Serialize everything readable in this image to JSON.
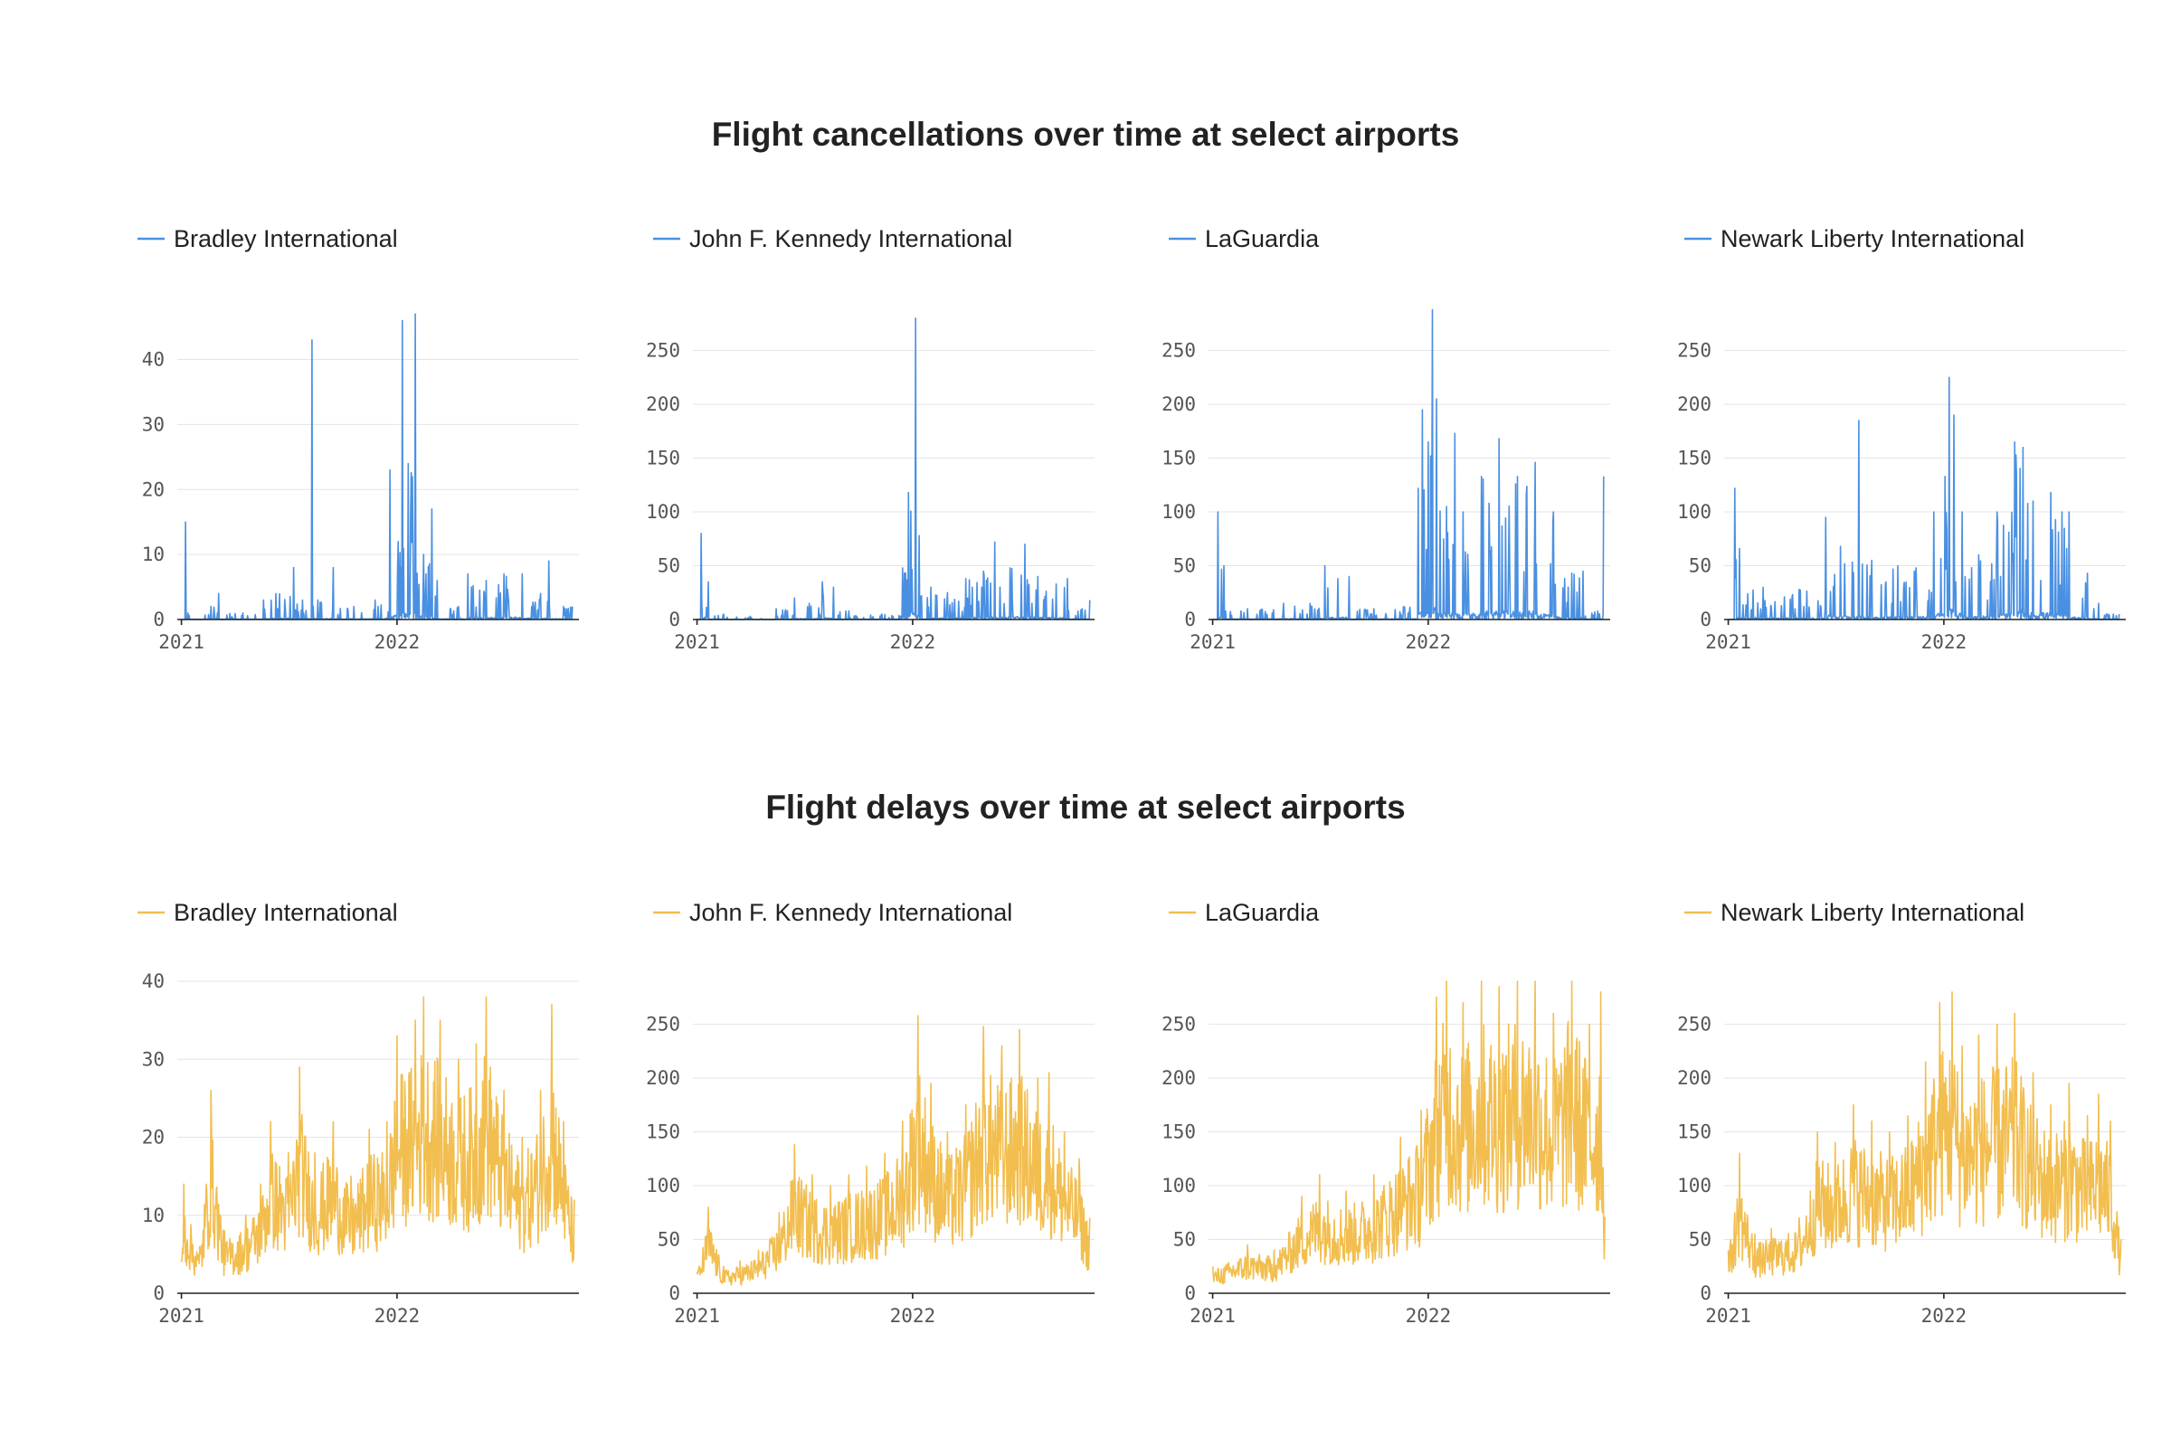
{
  "titles": {
    "top": "Flight cancellations over time at select airports",
    "bottom": "Flight delays over time at select airports"
  },
  "colors": {
    "cancellations": "#4a90e2",
    "delays": "#f2be4f"
  },
  "chart_data": [
    {
      "type": "line",
      "group": "cancellations",
      "series_name": "Bradley International",
      "ylim": [
        0,
        48
      ],
      "yticks": [
        0,
        10,
        20,
        30,
        40
      ],
      "xticks": [
        "2021",
        "2022"
      ],
      "xlim": [
        "2020-12-25",
        "2022-11-05"
      ],
      "grid": true,
      "anchors": [
        [
          "2021-01-01",
          0
        ],
        [
          "2021-01-08",
          15
        ],
        [
          "2021-01-12",
          1
        ],
        [
          "2021-02-20",
          2
        ],
        [
          "2021-03-05",
          4
        ],
        [
          "2021-04-15",
          1
        ],
        [
          "2021-05-20",
          3
        ],
        [
          "2021-06-10",
          4
        ],
        [
          "2021-07-10",
          8
        ],
        [
          "2021-07-25",
          3
        ],
        [
          "2021-08-10",
          43
        ],
        [
          "2021-08-20",
          3
        ],
        [
          "2021-09-15",
          8
        ],
        [
          "2021-10-20",
          2
        ],
        [
          "2021-11-25",
          3
        ],
        [
          "2021-12-20",
          23
        ],
        [
          "2022-01-03",
          12
        ],
        [
          "2022-01-10",
          46
        ],
        [
          "2022-01-20",
          24
        ],
        [
          "2022-02-01",
          47
        ],
        [
          "2022-02-15",
          10
        ],
        [
          "2022-03-01",
          17
        ],
        [
          "2022-03-10",
          6
        ],
        [
          "2022-04-15",
          2
        ],
        [
          "2022-05-01",
          7
        ],
        [
          "2022-06-01",
          6
        ],
        [
          "2022-07-01",
          7
        ],
        [
          "2022-08-01",
          7
        ],
        [
          "2022-09-01",
          4
        ],
        [
          "2022-09-15",
          9
        ],
        [
          "2022-10-10",
          2
        ],
        [
          "2022-10-25",
          2
        ]
      ]
    },
    {
      "type": "line",
      "group": "cancellations",
      "series_name": "John F. Kennedy International",
      "ylim": [
        0,
        290
      ],
      "yticks": [
        0,
        50,
        100,
        150,
        200,
        250
      ],
      "xticks": [
        "2021",
        "2022"
      ],
      "xlim": [
        "2020-12-25",
        "2022-11-05"
      ],
      "grid": true,
      "anchors": [
        [
          "2021-01-01",
          0
        ],
        [
          "2021-01-08",
          80
        ],
        [
          "2021-01-20",
          35
        ],
        [
          "2021-02-15",
          5
        ],
        [
          "2021-04-01",
          3
        ],
        [
          "2021-05-15",
          10
        ],
        [
          "2021-06-15",
          20
        ],
        [
          "2021-07-10",
          15
        ],
        [
          "2021-08-01",
          35
        ],
        [
          "2021-08-20",
          30
        ],
        [
          "2021-09-15",
          8
        ],
        [
          "2021-11-10",
          5
        ],
        [
          "2021-12-15",
          48
        ],
        [
          "2021-12-25",
          118
        ],
        [
          "2022-01-06",
          280
        ],
        [
          "2022-01-12",
          78
        ],
        [
          "2022-02-01",
          30
        ],
        [
          "2022-03-01",
          25
        ],
        [
          "2022-04-01",
          38
        ],
        [
          "2022-05-01",
          45
        ],
        [
          "2022-05-20",
          72
        ],
        [
          "2022-06-15",
          48
        ],
        [
          "2022-07-10",
          70
        ],
        [
          "2022-08-01",
          40
        ],
        [
          "2022-09-01",
          33
        ],
        [
          "2022-09-20",
          38
        ],
        [
          "2022-10-15",
          10
        ],
        [
          "2022-10-28",
          18
        ]
      ]
    },
    {
      "type": "line",
      "group": "cancellations",
      "series_name": "LaGuardia",
      "ylim": [
        0,
        290
      ],
      "yticks": [
        0,
        50,
        100,
        150,
        200,
        250
      ],
      "xticks": [
        "2021",
        "2022"
      ],
      "xlim": [
        "2020-12-25",
        "2022-11-05"
      ],
      "grid": true,
      "anchors": [
        [
          "2021-01-01",
          0
        ],
        [
          "2021-01-10",
          100
        ],
        [
          "2021-01-20",
          50
        ],
        [
          "2021-03-01",
          10
        ],
        [
          "2021-05-01",
          15
        ],
        [
          "2021-06-15",
          15
        ],
        [
          "2021-07-10",
          50
        ],
        [
          "2021-08-01",
          38
        ],
        [
          "2021-08-20",
          40
        ],
        [
          "2021-10-01",
          10
        ],
        [
          "2021-11-20",
          12
        ],
        [
          "2021-12-15",
          122
        ],
        [
          "2021-12-22",
          195
        ],
        [
          "2022-01-01",
          165
        ],
        [
          "2022-01-08",
          288
        ],
        [
          "2022-01-15",
          205
        ],
        [
          "2022-02-01",
          105
        ],
        [
          "2022-02-15",
          173
        ],
        [
          "2022-03-01",
          100
        ],
        [
          "2022-04-01",
          133
        ],
        [
          "2022-05-01",
          168
        ],
        [
          "2022-06-01",
          133
        ],
        [
          "2022-07-01",
          146
        ],
        [
          "2022-08-01",
          100
        ],
        [
          "2022-09-01",
          43
        ],
        [
          "2022-09-20",
          45
        ],
        [
          "2022-10-15",
          8
        ],
        [
          "2022-10-25",
          133
        ]
      ]
    },
    {
      "type": "line",
      "group": "cancellations",
      "series_name": "Newark Liberty International",
      "ylim": [
        0,
        290
      ],
      "yticks": [
        0,
        50,
        100,
        150,
        200,
        250
      ],
      "xticks": [
        "2021",
        "2022"
      ],
      "xlim": [
        "2020-12-25",
        "2022-11-05"
      ],
      "grid": true,
      "anchors": [
        [
          "2021-01-01",
          0
        ],
        [
          "2021-01-12",
          122
        ],
        [
          "2021-01-20",
          66
        ],
        [
          "2021-03-01",
          30
        ],
        [
          "2021-05-01",
          28
        ],
        [
          "2021-06-15",
          95
        ],
        [
          "2021-07-10",
          68
        ],
        [
          "2021-08-10",
          185
        ],
        [
          "2021-09-01",
          55
        ],
        [
          "2021-10-15",
          50
        ],
        [
          "2021-11-15",
          48
        ],
        [
          "2021-12-15",
          100
        ],
        [
          "2022-01-03",
          133
        ],
        [
          "2022-01-10",
          225
        ],
        [
          "2022-01-18",
          190
        ],
        [
          "2022-02-01",
          100
        ],
        [
          "2022-03-01",
          60
        ],
        [
          "2022-04-01",
          100
        ],
        [
          "2022-05-01",
          165
        ],
        [
          "2022-05-15",
          160
        ],
        [
          "2022-06-01",
          110
        ],
        [
          "2022-07-01",
          118
        ],
        [
          "2022-08-01",
          100
        ],
        [
          "2022-09-01",
          43
        ],
        [
          "2022-09-20",
          15
        ],
        [
          "2022-10-15",
          5
        ],
        [
          "2022-10-25",
          5
        ]
      ]
    },
    {
      "type": "line",
      "group": "delays",
      "series_name": "Bradley International",
      "ylim": [
        0,
        40
      ],
      "yticks": [
        0,
        10,
        20,
        30,
        40
      ],
      "xticks": [
        "2021",
        "2022"
      ],
      "xlim": [
        "2020-12-25",
        "2022-11-05"
      ],
      "grid": true,
      "anchors": [
        [
          "2021-01-01",
          4
        ],
        [
          "2021-01-05",
          14
        ],
        [
          "2021-02-01",
          6
        ],
        [
          "2021-02-20",
          26
        ],
        [
          "2021-03-15",
          8
        ],
        [
          "2021-04-20",
          10
        ],
        [
          "2021-05-15",
          14
        ],
        [
          "2021-06-01",
          22
        ],
        [
          "2021-07-01",
          18
        ],
        [
          "2021-07-20",
          29
        ],
        [
          "2021-08-15",
          18
        ],
        [
          "2021-09-15",
          22
        ],
        [
          "2021-10-15",
          15
        ],
        [
          "2021-11-15",
          21
        ],
        [
          "2021-12-15",
          22
        ],
        [
          "2022-01-01",
          33
        ],
        [
          "2022-02-01",
          35
        ],
        [
          "2022-02-15",
          38
        ],
        [
          "2022-03-15",
          35
        ],
        [
          "2022-04-15",
          30
        ],
        [
          "2022-05-15",
          32
        ],
        [
          "2022-06-01",
          38
        ],
        [
          "2022-07-01",
          26
        ],
        [
          "2022-08-01",
          20
        ],
        [
          "2022-09-01",
          26
        ],
        [
          "2022-09-20",
          37
        ],
        [
          "2022-10-10",
          22
        ],
        [
          "2022-10-28",
          12
        ]
      ]
    },
    {
      "type": "line",
      "group": "delays",
      "series_name": "John F. Kennedy International",
      "ylim": [
        0,
        290
      ],
      "yticks": [
        0,
        50,
        100,
        150,
        200,
        250
      ],
      "xticks": [
        "2021",
        "2022"
      ],
      "xlim": [
        "2020-12-25",
        "2022-11-05"
      ],
      "grid": true,
      "anchors": [
        [
          "2021-01-01",
          20
        ],
        [
          "2021-01-20",
          80
        ],
        [
          "2021-02-15",
          25
        ],
        [
          "2021-03-15",
          30
        ],
        [
          "2021-04-15",
          40
        ],
        [
          "2021-05-20",
          75
        ],
        [
          "2021-06-15",
          138
        ],
        [
          "2021-07-15",
          110
        ],
        [
          "2021-08-15",
          100
        ],
        [
          "2021-09-15",
          110
        ],
        [
          "2021-10-15",
          118
        ],
        [
          "2021-11-15",
          130
        ],
        [
          "2021-12-15",
          160
        ],
        [
          "2022-01-10",
          258
        ],
        [
          "2022-02-01",
          195
        ],
        [
          "2022-03-01",
          150
        ],
        [
          "2022-04-01",
          175
        ],
        [
          "2022-05-01",
          248
        ],
        [
          "2022-06-01",
          230
        ],
        [
          "2022-07-01",
          245
        ],
        [
          "2022-08-01",
          200
        ],
        [
          "2022-08-20",
          205
        ],
        [
          "2022-09-15",
          150
        ],
        [
          "2022-10-10",
          125
        ],
        [
          "2022-10-28",
          70
        ]
      ]
    },
    {
      "type": "line",
      "group": "delays",
      "series_name": "LaGuardia",
      "ylim": [
        0,
        290
      ],
      "yticks": [
        0,
        50,
        100,
        150,
        200,
        250
      ],
      "xticks": [
        "2021",
        "2022"
      ],
      "xlim": [
        "2020-12-25",
        "2022-11-05"
      ],
      "grid": true,
      "anchors": [
        [
          "2021-01-01",
          25
        ],
        [
          "2021-03-01",
          45
        ],
        [
          "2021-04-15",
          40
        ],
        [
          "2021-06-01",
          90
        ],
        [
          "2021-07-01",
          110
        ],
        [
          "2021-08-15",
          95
        ],
        [
          "2021-10-01",
          110
        ],
        [
          "2021-11-15",
          145
        ],
        [
          "2021-12-20",
          170
        ],
        [
          "2022-01-15",
          275
        ],
        [
          "2022-02-01",
          310
        ],
        [
          "2022-03-01",
          270
        ],
        [
          "2022-04-01",
          300
        ],
        [
          "2022-05-01",
          285
        ],
        [
          "2022-06-01",
          305
        ],
        [
          "2022-07-01",
          300
        ],
        [
          "2022-08-01",
          260
        ],
        [
          "2022-09-01",
          310
        ],
        [
          "2022-10-01",
          250
        ],
        [
          "2022-10-20",
          280
        ],
        [
          "2022-10-28",
          70
        ]
      ]
    },
    {
      "type": "line",
      "group": "delays",
      "series_name": "Newark Liberty International",
      "ylim": [
        0,
        290
      ],
      "yticks": [
        0,
        50,
        100,
        150,
        200,
        250
      ],
      "xticks": [
        "2021",
        "2022"
      ],
      "xlim": [
        "2020-12-25",
        "2022-11-05"
      ],
      "grid": true,
      "anchors": [
        [
          "2021-01-01",
          40
        ],
        [
          "2021-01-20",
          130
        ],
        [
          "2021-02-15",
          55
        ],
        [
          "2021-03-15",
          60
        ],
        [
          "2021-05-01",
          70
        ],
        [
          "2021-06-01",
          150
        ],
        [
          "2021-07-01",
          140
        ],
        [
          "2021-08-01",
          175
        ],
        [
          "2021-09-01",
          160
        ],
        [
          "2021-10-01",
          150
        ],
        [
          "2021-11-01",
          165
        ],
        [
          "2021-12-01",
          215
        ],
        [
          "2021-12-25",
          270
        ],
        [
          "2022-01-15",
          280
        ],
        [
          "2022-02-01",
          230
        ],
        [
          "2022-03-01",
          240
        ],
        [
          "2022-04-01",
          250
        ],
        [
          "2022-05-01",
          260
        ],
        [
          "2022-06-01",
          205
        ],
        [
          "2022-07-01",
          175
        ],
        [
          "2022-08-01",
          195
        ],
        [
          "2022-09-01",
          165
        ],
        [
          "2022-09-20",
          185
        ],
        [
          "2022-10-10",
          160
        ],
        [
          "2022-10-28",
          50
        ]
      ]
    }
  ]
}
